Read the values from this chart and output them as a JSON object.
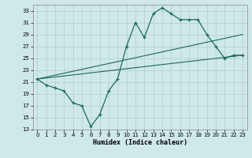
{
  "xlabel": "Humidex (Indice chaleur)",
  "bg_color": "#cfe8ea",
  "grid_color": "#b8d0d2",
  "line_color": "#1a6b5a",
  "xlim": [
    -0.5,
    23.5
  ],
  "ylim": [
    13,
    34
  ],
  "yticks": [
    13,
    15,
    17,
    19,
    21,
    23,
    25,
    27,
    29,
    31,
    33
  ],
  "xticks": [
    0,
    1,
    2,
    3,
    4,
    5,
    6,
    7,
    8,
    9,
    10,
    11,
    12,
    13,
    14,
    15,
    16,
    17,
    18,
    19,
    20,
    21,
    22,
    23
  ],
  "line1_x": [
    0,
    1,
    2,
    3,
    4,
    5,
    6,
    7,
    8,
    9,
    10,
    11,
    12,
    13,
    14,
    15,
    16,
    17,
    18,
    19,
    20,
    21,
    22,
    23
  ],
  "line1_y": [
    21.5,
    20.5,
    20.0,
    19.5,
    17.5,
    17.0,
    13.5,
    15.5,
    19.5,
    21.5,
    27.0,
    31.0,
    28.5,
    32.5,
    33.5,
    32.5,
    31.5,
    31.5,
    31.5,
    29.0,
    27.0,
    25.0,
    25.5,
    25.5
  ],
  "line2_x": [
    0,
    23
  ],
  "line2_y": [
    21.5,
    29.0
  ],
  "line3_x": [
    0,
    23
  ],
  "line3_y": [
    21.5,
    25.5
  ],
  "xlabel_fontsize": 6.0,
  "tick_fontsize": 5.0
}
